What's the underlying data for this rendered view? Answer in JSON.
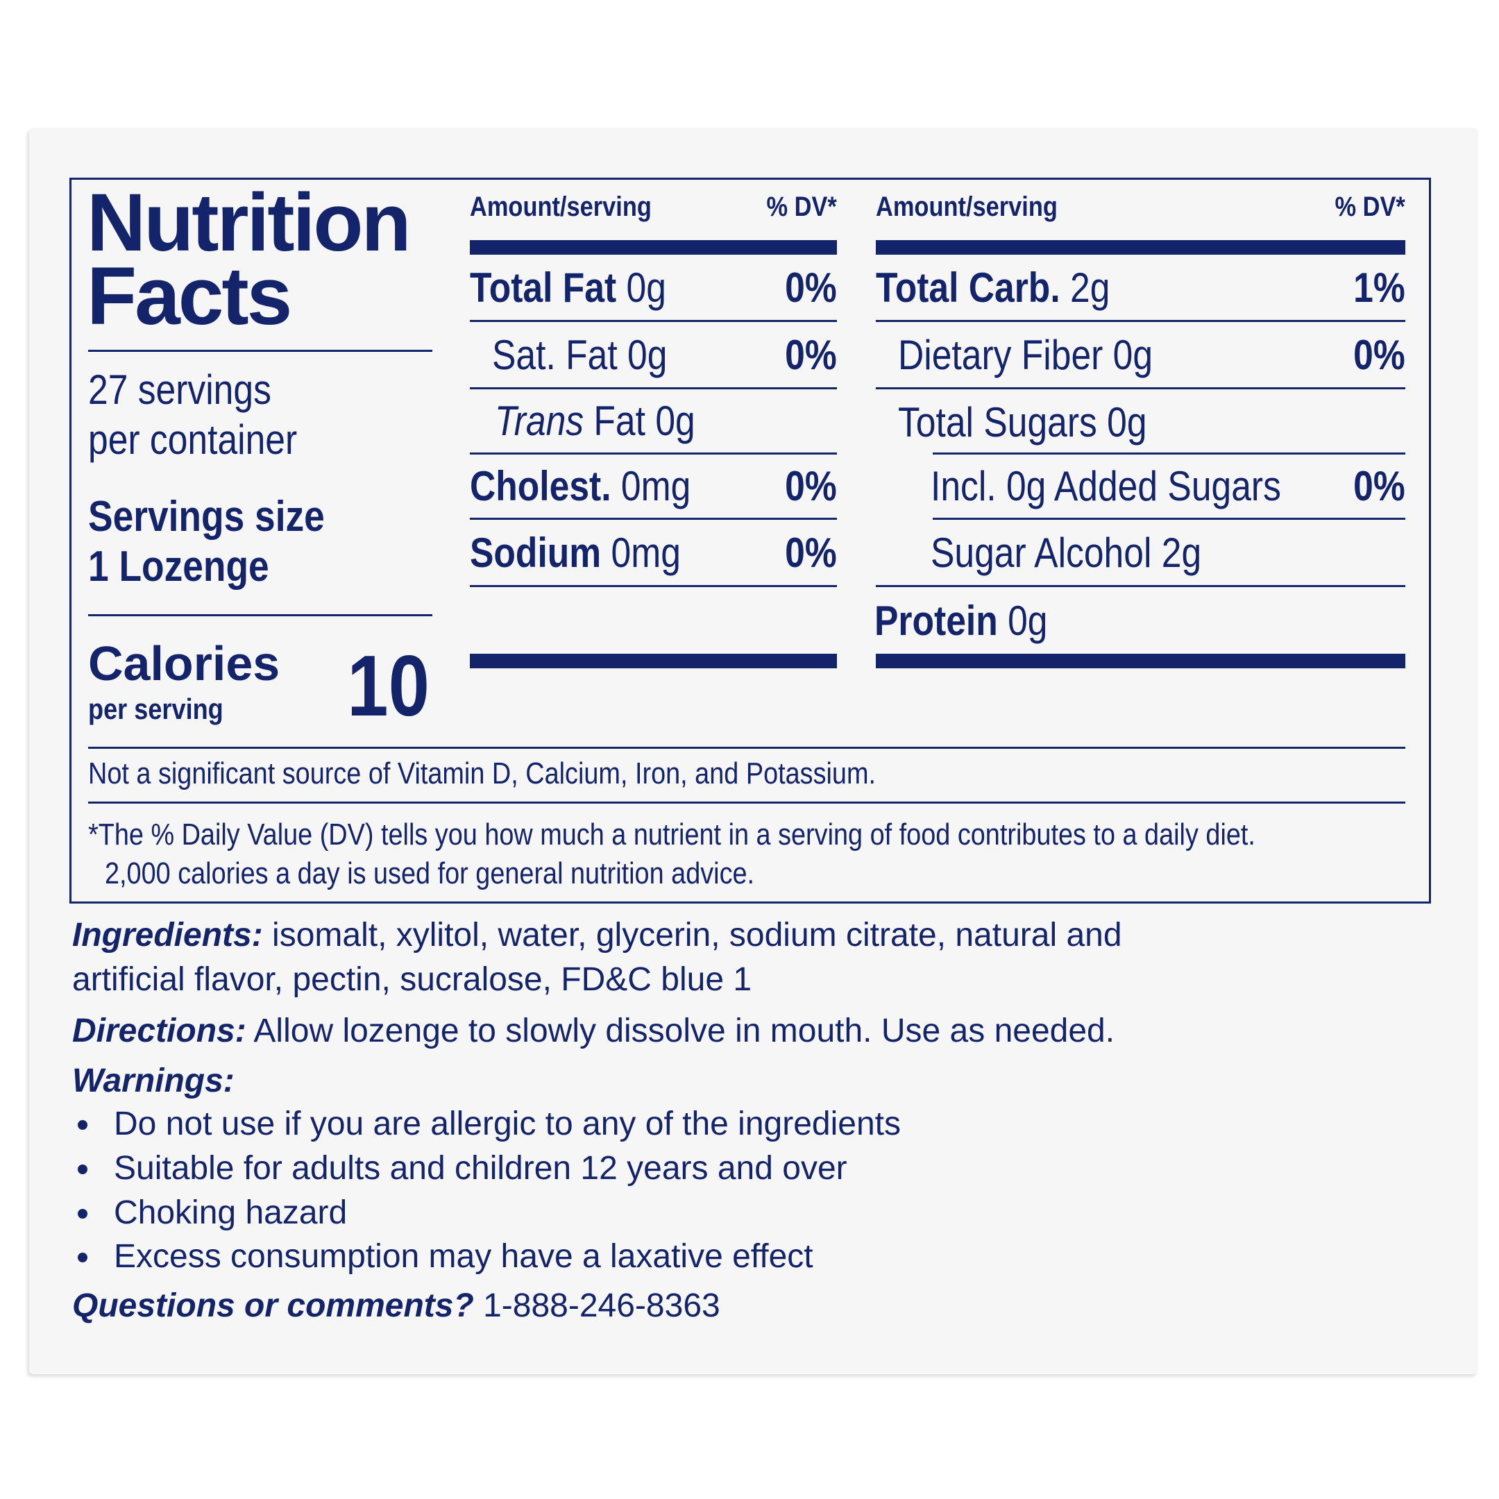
{
  "colors": {
    "ink": "#14246a",
    "card": "#f6f6f6"
  },
  "title": {
    "line1": "Nutrition",
    "line2": "Facts"
  },
  "servings": {
    "line1": "27 servings",
    "line2": "per container"
  },
  "serving_size": {
    "label": "Servings size",
    "value": "1 Lozenge"
  },
  "calories": {
    "label": "Calories",
    "sub": "per serving",
    "value": "10"
  },
  "columns": {
    "amount_label": "Amount/serving",
    "dv_label": "% DV*"
  },
  "left_rows": [
    {
      "name": "Total Fat",
      "amount": "0g",
      "dv": "0%"
    },
    {
      "name": "Sat. Fat",
      "amount": "0g",
      "dv": "0%"
    },
    {
      "name_italic": "Trans",
      "name": "Fat",
      "amount": "0g",
      "dv": ""
    },
    {
      "name": "Cholest.",
      "amount": "0mg",
      "dv": "0%"
    },
    {
      "name": "Sodium",
      "amount": "0mg",
      "dv": "0%"
    }
  ],
  "right_rows": [
    {
      "name": "Total Carb.",
      "amount": "2g",
      "dv": "1%"
    },
    {
      "name": "Dietary Fiber",
      "amount": "0g",
      "dv": "0%"
    },
    {
      "name": "Total Sugars",
      "amount": "0g",
      "dv": ""
    },
    {
      "name": "Incl. 0g Added Sugars",
      "amount": "",
      "dv": "0%"
    },
    {
      "name": "Sugar Alcohol",
      "amount": "2g",
      "dv": ""
    },
    {
      "name": "Protein",
      "amount": "0g",
      "dv": ""
    }
  ],
  "not_significant": "Not a significant source of Vitamin D, Calcium, Iron, and Potassium.",
  "footnote": {
    "line1": "*The % Daily Value (DV) tells you how much a nutrient in a serving of food contributes to a daily diet.",
    "line2": "2,000 calories a day is used for general nutrition advice."
  },
  "ingredients": {
    "label": "Ingredients:",
    "line1": "isomalt, xylitol, water, glycerin, sodium citrate, natural and",
    "line2": "artificial flavor, pectin, sucralose, FD&C blue 1"
  },
  "directions": {
    "label": "Directions:",
    "text": "Allow lozenge to slowly dissolve in mouth. Use as needed."
  },
  "warnings": {
    "label": "Warnings:",
    "items": [
      "Do not use if you are allergic to any of the ingredients",
      "Suitable for adults and children 12 years and over",
      "Choking hazard",
      "Excess consumption may have a laxative effect"
    ]
  },
  "questions": {
    "label": "Questions or comments?",
    "phone": "1-888-246-8363"
  }
}
